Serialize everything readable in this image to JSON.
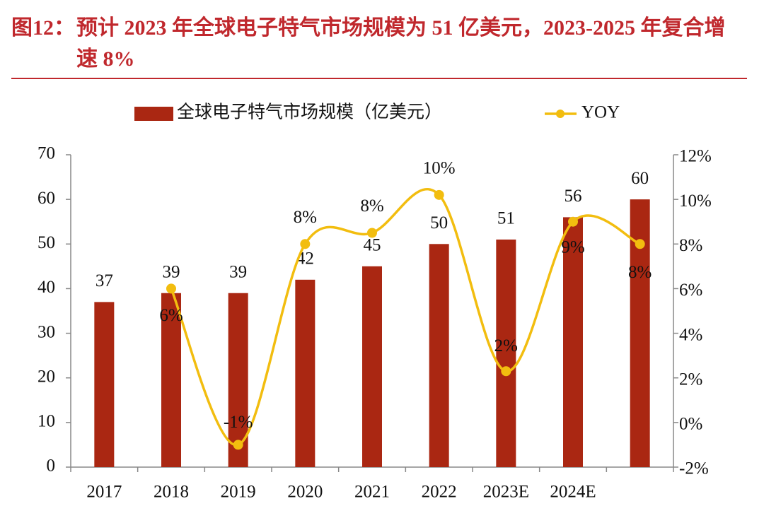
{
  "figure_label": "图12：",
  "title": "预计 2023 年全球电子特气市场规模为 51 亿美元，2023-2025 年复合增速 8%",
  "chart_data": {
    "type": "bar-line",
    "categories": [
      "2017",
      "2018",
      "2019",
      "2020",
      "2021",
      "2022",
      "2023E",
      "2024E",
      null
    ],
    "series": [
      {
        "name": "全球电子特气市场规模（亿美元）",
        "type": "bar",
        "color": "#aa2712",
        "values": [
          37,
          39,
          39,
          42,
          45,
          50,
          51,
          56,
          60
        ]
      },
      {
        "name": "YOY",
        "type": "line",
        "axis": "y2",
        "color": "#f2bd0f",
        "values": [
          null,
          6,
          -1,
          8,
          8.5,
          10.2,
          2.3,
          9,
          8
        ],
        "value_labels": [
          null,
          "6%",
          "-1%",
          "8%",
          "8%",
          "10%",
          "2%",
          "9%",
          "8%"
        ]
      }
    ],
    "ylim": [
      0,
      70
    ],
    "yticks": [
      0,
      10,
      20,
      30,
      40,
      50,
      60,
      70
    ],
    "y2lim": [
      -2,
      12
    ],
    "y2ticks": [
      {
        "value": -2,
        "label": "-2%"
      },
      {
        "value": 0,
        "label": "0%"
      },
      {
        "value": 2,
        "label": "2%"
      },
      {
        "value": 4,
        "label": "4%"
      },
      {
        "value": 6,
        "label": "6%"
      },
      {
        "value": 8,
        "label": "8%"
      },
      {
        "value": 10,
        "label": "10%"
      },
      {
        "value": 12,
        "label": "12%"
      }
    ],
    "legend": "top"
  }
}
